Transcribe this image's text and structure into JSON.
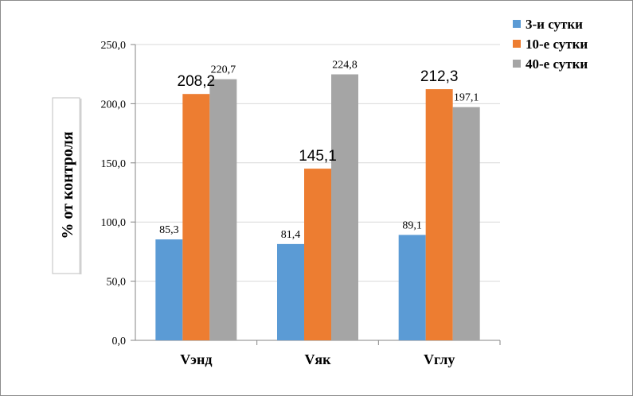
{
  "chart_data": {
    "type": "bar",
    "categories": [
      "Vэнд",
      "Vяк",
      "Vглу"
    ],
    "series": [
      {
        "name": "3-и сутки",
        "values": [
          85.3,
          81.4,
          89.1
        ],
        "labels": [
          "85,3",
          "81,4",
          "89,1"
        ],
        "color": "#5b9bd5"
      },
      {
        "name": "10-е сутки",
        "values": [
          208.2,
          145.1,
          212.3
        ],
        "labels": [
          "208,2",
          "145,1",
          "212,3"
        ],
        "color": "#ed7d31"
      },
      {
        "name": "40-е сутки",
        "values": [
          220.7,
          224.8,
          197.1
        ],
        "labels": [
          "220,7",
          "224,8",
          "197,1"
        ],
        "color": "#a5a5a5"
      }
    ],
    "ylabel": "% от контроля",
    "ylim": [
      0,
      250
    ],
    "yticks": [
      "0,0",
      "50,0",
      "100,0",
      "150,0",
      "200,0",
      "250,0"
    ],
    "grid": true,
    "legend": "top-right"
  }
}
